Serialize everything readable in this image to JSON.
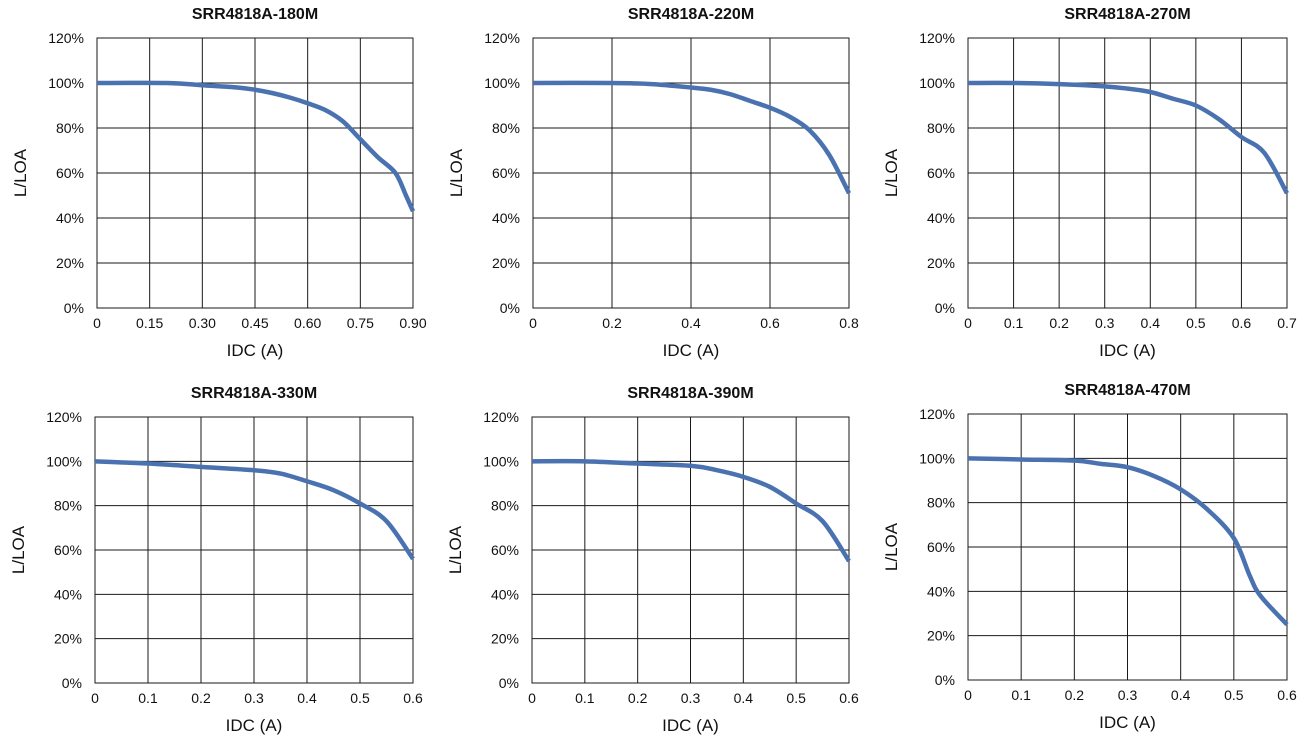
{
  "colors": {
    "curve": "#4a72b0",
    "grid": "#1a1a1a",
    "frame": "#1a1a1a"
  },
  "chart_data": [
    {
      "type": "line",
      "title": "SRR4818A-180M",
      "xlabel": "IDC (A)",
      "ylabel": "L/LOA",
      "grid": true,
      "xlim": [
        0,
        0.9
      ],
      "ylim": [
        0,
        120
      ],
      "xticks": [
        "0",
        "0.15",
        "0.30",
        "0.45",
        "0.60",
        "0.75",
        "0.90"
      ],
      "yticks": [
        "0%",
        "20%",
        "40%",
        "60%",
        "80%",
        "100%",
        "120%"
      ],
      "series": [
        {
          "x": [
            0,
            0.2,
            0.3,
            0.4,
            0.45,
            0.5,
            0.55,
            0.6,
            0.65,
            0.7,
            0.75,
            0.8,
            0.85,
            0.88,
            0.9
          ],
          "y": [
            100,
            100,
            99,
            98,
            97,
            95.5,
            93.5,
            91,
            88,
            83,
            75,
            67,
            60,
            50,
            43
          ]
        }
      ]
    },
    {
      "type": "line",
      "title": "SRR4818A-220M",
      "xlabel": "IDC (A)",
      "ylabel": "L/LOA",
      "grid": true,
      "xlim": [
        0,
        0.8
      ],
      "ylim": [
        0,
        120
      ],
      "xticks": [
        "0",
        "0.2",
        "0.4",
        "0.6",
        "0.8"
      ],
      "yticks": [
        "0%",
        "20%",
        "40%",
        "60%",
        "80%",
        "100%",
        "120%"
      ],
      "series": [
        {
          "x": [
            0,
            0.2,
            0.3,
            0.4,
            0.45,
            0.5,
            0.55,
            0.6,
            0.65,
            0.7,
            0.75,
            0.8
          ],
          "y": [
            100,
            100,
            99.5,
            98,
            97,
            95,
            92,
            89,
            85,
            79,
            68,
            51
          ]
        }
      ]
    },
    {
      "type": "line",
      "title": "SRR4818A-270M",
      "xlabel": "IDC (A)",
      "ylabel": "L/LOA",
      "grid": true,
      "xlim": [
        0,
        0.7
      ],
      "ylim": [
        0,
        120
      ],
      "xticks": [
        "0",
        "0.1",
        "0.2",
        "0.3",
        "0.4",
        "0.5",
        "0.6",
        "0.7"
      ],
      "yticks": [
        "0%",
        "20%",
        "40%",
        "60%",
        "80%",
        "100%",
        "120%"
      ],
      "series": [
        {
          "x": [
            0,
            0.1,
            0.2,
            0.3,
            0.35,
            0.4,
            0.45,
            0.5,
            0.55,
            0.6,
            0.65,
            0.7
          ],
          "y": [
            100,
            100,
            99.5,
            98.5,
            97.5,
            96,
            93,
            90,
            84,
            76,
            69,
            51
          ]
        }
      ]
    },
    {
      "type": "line",
      "title": "SRR4818A-330M",
      "xlabel": "IDC (A)",
      "ylabel": "L/LOA",
      "grid": true,
      "xlim": [
        0,
        0.6
      ],
      "ylim": [
        0,
        120
      ],
      "xticks": [
        "0",
        "0.1",
        "0.2",
        "0.3",
        "0.4",
        "0.5",
        "0.6"
      ],
      "yticks": [
        "0%",
        "20%",
        "40%",
        "60%",
        "80%",
        "100%",
        "120%"
      ],
      "series": [
        {
          "x": [
            0,
            0.1,
            0.2,
            0.3,
            0.35,
            0.4,
            0.45,
            0.5,
            0.55,
            0.6
          ],
          "y": [
            100,
            99,
            97.5,
            96,
            94.5,
            91,
            87,
            81,
            73,
            56
          ]
        }
      ]
    },
    {
      "type": "line",
      "title": "SRR4818A-390M",
      "xlabel": "IDC (A)",
      "ylabel": "L/LOA",
      "grid": true,
      "xlim": [
        0,
        0.6
      ],
      "ylim": [
        0,
        120
      ],
      "xticks": [
        "0",
        "0.1",
        "0.2",
        "0.3",
        "0.4",
        "0.5",
        "0.6"
      ],
      "yticks": [
        "0%",
        "20%",
        "40%",
        "60%",
        "80%",
        "100%",
        "120%"
      ],
      "series": [
        {
          "x": [
            0,
            0.1,
            0.2,
            0.3,
            0.35,
            0.4,
            0.45,
            0.5,
            0.55,
            0.6
          ],
          "y": [
            100,
            100,
            99,
            98,
            96,
            93,
            88.5,
            81,
            73,
            55
          ]
        }
      ]
    },
    {
      "type": "line",
      "title": "SRR4818A-470M",
      "xlabel": "IDC (A)",
      "ylabel": "L/LOA",
      "grid": true,
      "xlim": [
        0,
        0.6
      ],
      "ylim": [
        0,
        120
      ],
      "xticks": [
        "0",
        "0.1",
        "0.2",
        "0.3",
        "0.4",
        "0.5",
        "0.6"
      ],
      "yticks": [
        "0%",
        "20%",
        "40%",
        "60%",
        "80%",
        "100%",
        "120%"
      ],
      "series": [
        {
          "x": [
            0,
            0.1,
            0.2,
            0.25,
            0.3,
            0.35,
            0.4,
            0.45,
            0.5,
            0.53,
            0.55,
            0.6
          ],
          "y": [
            100,
            99.5,
            99,
            97.5,
            96,
            92,
            86,
            77,
            64,
            47,
            38,
            25
          ]
        }
      ]
    }
  ]
}
